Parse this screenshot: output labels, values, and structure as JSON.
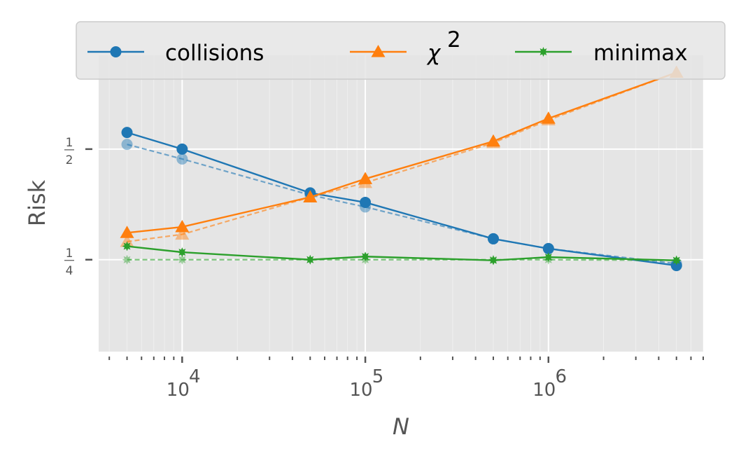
{
  "chart_data": {
    "type": "line",
    "xlabel": "N",
    "ylabel": "Risk",
    "xscale": "log",
    "yscale": "log",
    "xlim": [
      3500,
      7000000
    ],
    "ylim": [
      0.1405,
      0.9
    ],
    "x": [
      5000,
      10000,
      50000,
      100000,
      500000,
      1000000,
      5000000
    ],
    "x_ticks": [
      {
        "value": 10000,
        "base": "10",
        "exp": "4"
      },
      {
        "value": 100000,
        "base": "10",
        "exp": "5"
      },
      {
        "value": 1000000,
        "base": "10",
        "exp": "6"
      }
    ],
    "y_ticks": [
      {
        "value": 0.5,
        "num": "1",
        "den": "2"
      },
      {
        "value": 0.25,
        "num": "1",
        "den": "4"
      }
    ],
    "grid": true,
    "legend_position": "top",
    "series": [
      {
        "name": "collisions",
        "marker": "circle",
        "color": "#1f77b4",
        "values": [
          0.555,
          0.5,
          0.38,
          0.358,
          0.285,
          0.268,
          0.241
        ],
        "expected": [
          0.515,
          0.47,
          0.375,
          0.348,
          0.285,
          0.268,
          0.244
        ]
      },
      {
        "name": "χ",
        "superscript": "2",
        "marker": "triangle",
        "color": "#ff7f0e",
        "values": [
          0.296,
          0.307,
          0.37,
          0.415,
          0.525,
          0.606,
          0.808
        ],
        "expected": [
          0.28,
          0.293,
          0.37,
          0.405,
          0.52,
          0.6,
          0.808
        ]
      },
      {
        "name": "minimax",
        "marker": "star",
        "color": "#2ca02c",
        "values": [
          0.272,
          0.262,
          0.25,
          0.255,
          0.249,
          0.254,
          0.249
        ],
        "expected": [
          0.25,
          0.25,
          0.25,
          0.25,
          0.25,
          0.25,
          0.249
        ]
      }
    ]
  }
}
